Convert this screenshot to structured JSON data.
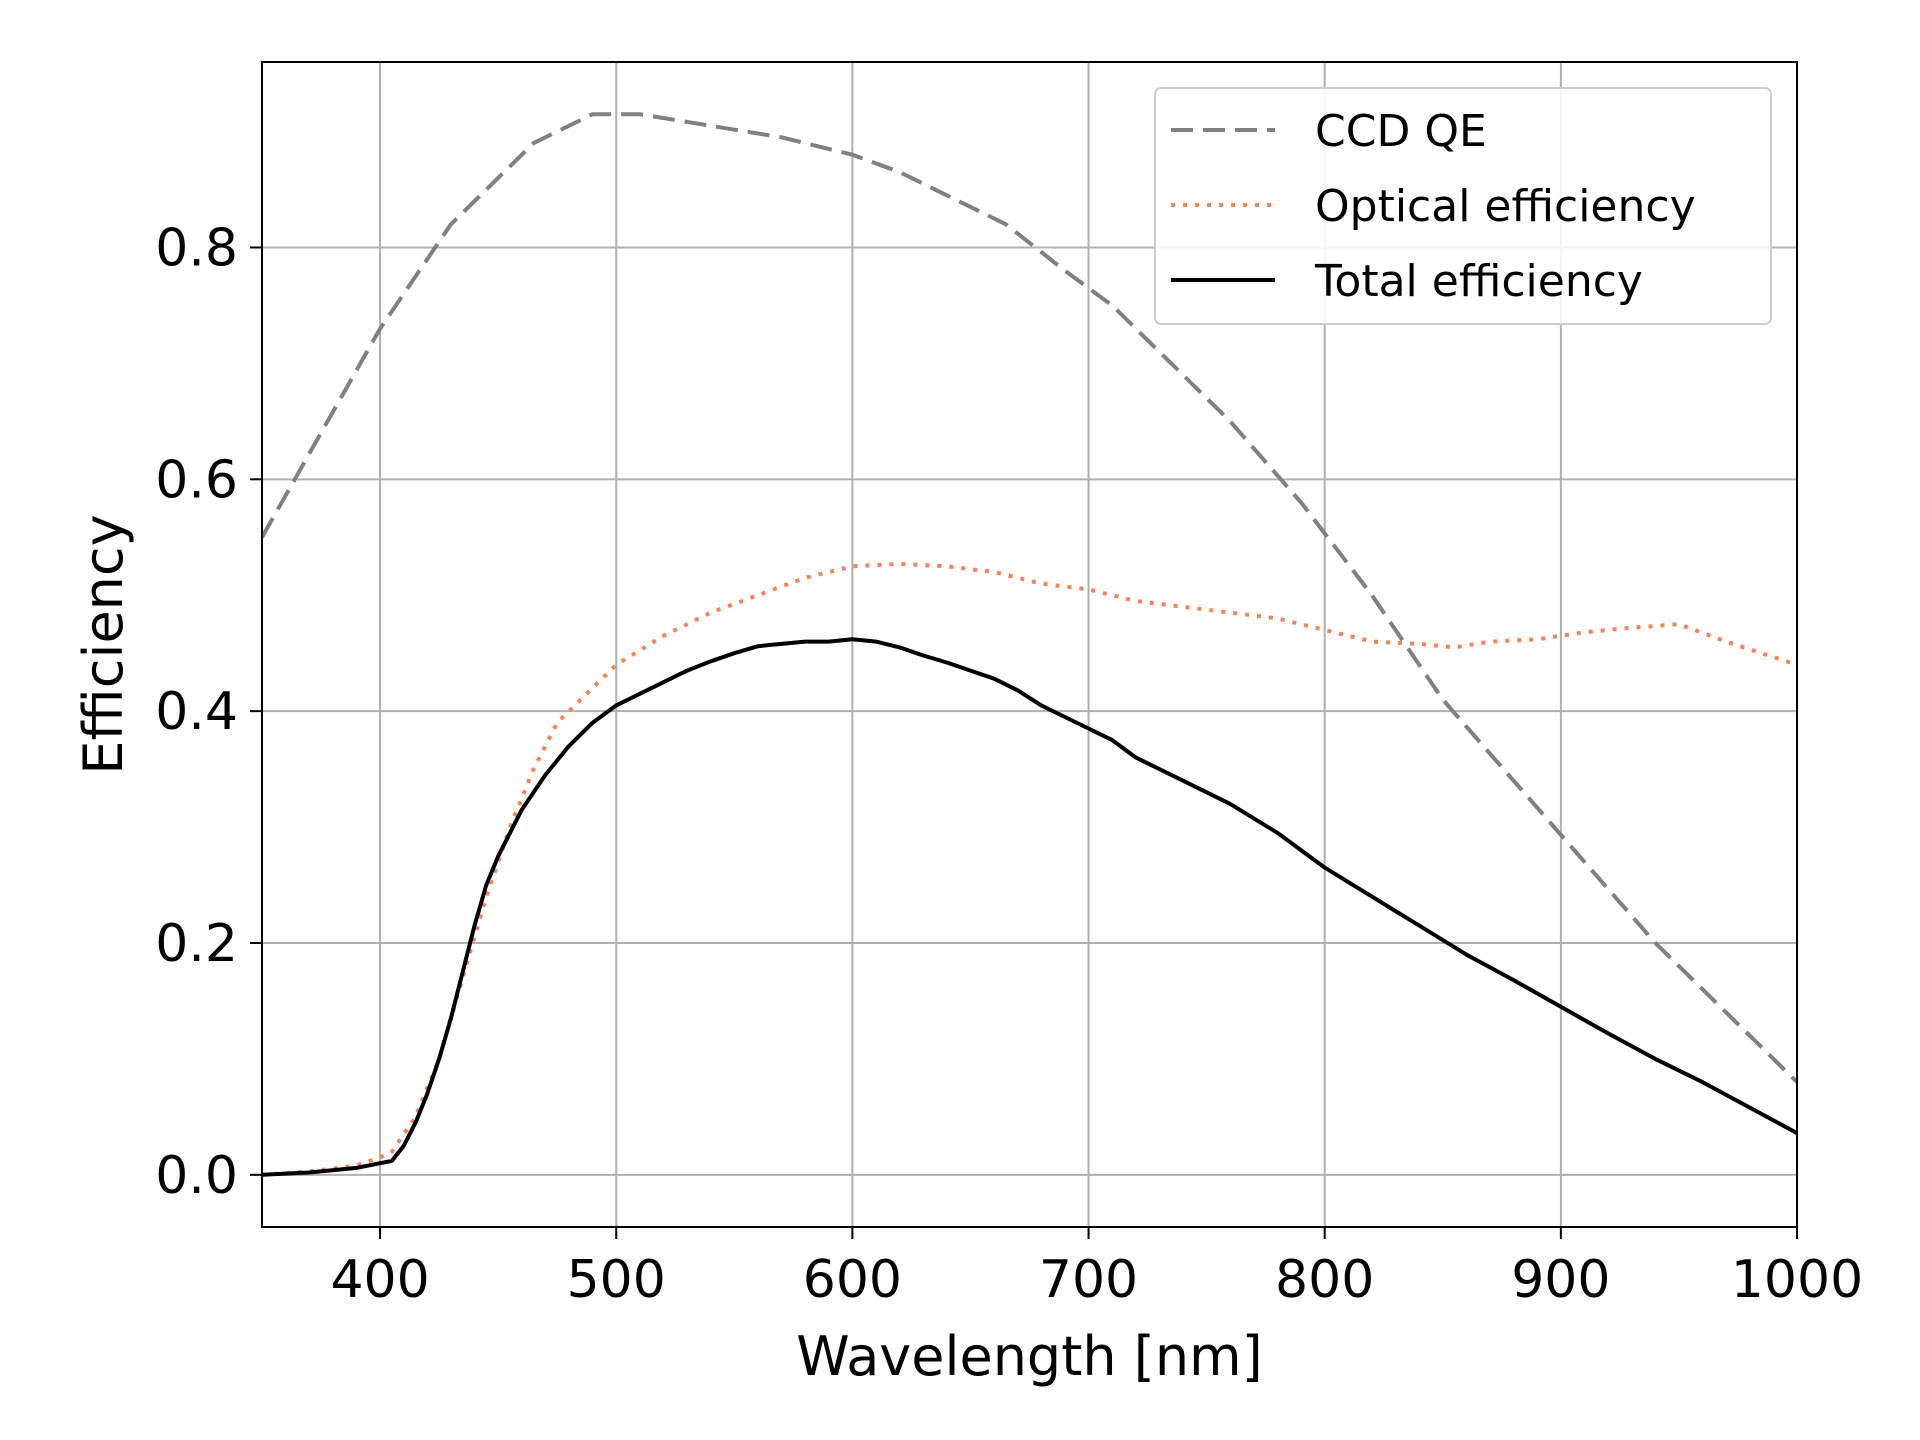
{
  "chart_data": {
    "type": "line",
    "title": "",
    "xlabel": "Wavelength [nm]",
    "ylabel": "Efficiency",
    "xlim": [
      350,
      1000
    ],
    "ylim": [
      -0.045,
      0.96
    ],
    "xticks": [
      400,
      500,
      600,
      700,
      800,
      900,
      1000
    ],
    "yticks": [
      0.0,
      0.2,
      0.4,
      0.6,
      0.8
    ],
    "ytick_labels": [
      "0.0",
      "0.2",
      "0.4",
      "0.6",
      "0.8"
    ],
    "xtick_labels": [
      "400",
      "500",
      "600",
      "700",
      "800",
      "900",
      "1000"
    ],
    "grid": true,
    "legend_position": "top-right",
    "series": [
      {
        "name": "CCD QE",
        "style": "dashed",
        "color": "#808080",
        "x": [
          350,
          375,
          400,
          430,
          465,
          490,
          510,
          540,
          570,
          600,
          620,
          640,
          665,
          690,
          710,
          735,
          760,
          790,
          820,
          850,
          880,
          910,
          940,
          970,
          1000
        ],
        "y": [
          0.55,
          0.64,
          0.73,
          0.82,
          0.89,
          0.915,
          0.915,
          0.905,
          0.895,
          0.88,
          0.865,
          0.845,
          0.82,
          0.78,
          0.75,
          0.7,
          0.65,
          0.58,
          0.5,
          0.41,
          0.34,
          0.27,
          0.2,
          0.14,
          0.08
        ]
      },
      {
        "name": "Optical efficiency",
        "style": "dotted",
        "color": "#ff7f50",
        "x": [
          350,
          370,
          390,
          400,
          405,
          415,
          425,
          435,
          445,
          455,
          465,
          475,
          485,
          500,
          520,
          540,
          560,
          580,
          600,
          620,
          640,
          660,
          680,
          700,
          720,
          740,
          760,
          780,
          800,
          820,
          840,
          855,
          870,
          890,
          910,
          930,
          950,
          970,
          1000
        ],
        "y": [
          0.0,
          0.003,
          0.008,
          0.015,
          0.02,
          0.05,
          0.1,
          0.17,
          0.24,
          0.3,
          0.35,
          0.39,
          0.41,
          0.44,
          0.465,
          0.485,
          0.5,
          0.515,
          0.525,
          0.527,
          0.525,
          0.52,
          0.51,
          0.505,
          0.495,
          0.49,
          0.485,
          0.48,
          0.47,
          0.46,
          0.458,
          0.455,
          0.46,
          0.462,
          0.468,
          0.472,
          0.475,
          0.46,
          0.44
        ]
      },
      {
        "name": "Total efficiency",
        "style": "solid",
        "color": "#000000",
        "x": [
          350,
          370,
          390,
          400,
          405,
          410,
          415,
          420,
          425,
          430,
          435,
          440,
          445,
          450,
          460,
          470,
          480,
          490,
          500,
          510,
          520,
          530,
          540,
          550,
          560,
          570,
          580,
          590,
          600,
          610,
          620,
          630,
          640,
          650,
          660,
          670,
          680,
          690,
          700,
          710,
          720,
          740,
          760,
          780,
          800,
          820,
          840,
          860,
          880,
          900,
          920,
          940,
          960,
          980,
          1000
        ],
        "y": [
          0.0,
          0.002,
          0.006,
          0.01,
          0.012,
          0.025,
          0.045,
          0.07,
          0.1,
          0.135,
          0.175,
          0.215,
          0.25,
          0.275,
          0.315,
          0.345,
          0.37,
          0.39,
          0.405,
          0.415,
          0.425,
          0.435,
          0.443,
          0.45,
          0.456,
          0.458,
          0.46,
          0.46,
          0.462,
          0.46,
          0.455,
          0.448,
          0.442,
          0.435,
          0.428,
          0.418,
          0.405,
          0.395,
          0.385,
          0.375,
          0.36,
          0.34,
          0.32,
          0.295,
          0.265,
          0.24,
          0.215,
          0.19,
          0.168,
          0.145,
          0.122,
          0.1,
          0.08,
          0.058,
          0.036
        ]
      }
    ]
  }
}
